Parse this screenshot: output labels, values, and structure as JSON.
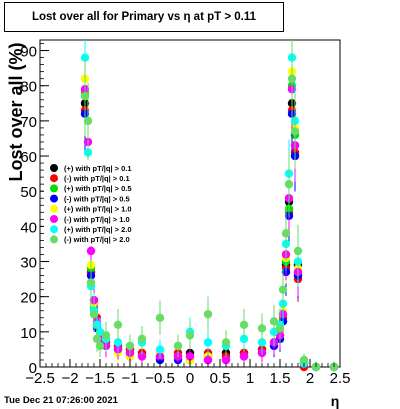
{
  "title": "Lost over all for Primary vs  η at pT > 0.11",
  "timestamp": "Tue Dec 21 07:26:00 2021",
  "chart_data": {
    "type": "scatter",
    "xlabel": "η",
    "ylabel": "Lost over all (%)",
    "xlim": [
      -2.5,
      2.5
    ],
    "ylim": [
      0,
      93
    ],
    "x_ticks": [
      "−2.5",
      "−2",
      "−1.5",
      "−1",
      "−0.5",
      "0",
      "0.5",
      "1",
      "1.5",
      "2",
      "2.5"
    ],
    "y_ticks": [
      "0",
      "10",
      "20",
      "30",
      "40",
      "50",
      "60",
      "70",
      "80",
      "90"
    ],
    "grid": false,
    "legend_position": "left-middle",
    "series": [
      {
        "name": "(+) with pT/|q| > 0.1",
        "color": "#000000",
        "x": [
          -1.75,
          -1.7,
          -1.65,
          -1.6,
          -1.55,
          -1.5,
          -1.4,
          -1.2,
          -1.0,
          -0.8,
          -0.5,
          -0.2,
          0.0,
          0.3,
          0.6,
          0.9,
          1.2,
          1.4,
          1.5,
          1.55,
          1.6,
          1.65,
          1.7,
          1.75,
          1.8,
          1.9,
          2.1,
          2.4
        ],
        "y": [
          75,
          47,
          27,
          18,
          12,
          9,
          7,
          6,
          5,
          4,
          4,
          3,
          4,
          3,
          4,
          4,
          5,
          7,
          9,
          13,
          29,
          47,
          75,
          63,
          29,
          1,
          0,
          0
        ]
      },
      {
        "name": "(-) with pT/|q| > 0.1",
        "color": "#ff0000",
        "x": [
          -1.75,
          -1.7,
          -1.65,
          -1.6,
          -1.55,
          -1.5,
          -1.4,
          -1.2,
          -1.0,
          -0.8,
          -0.5,
          -0.2,
          0.0,
          0.3,
          0.6,
          0.9,
          1.2,
          1.4,
          1.5,
          1.55,
          1.6,
          1.65,
          1.7,
          1.75,
          1.8,
          1.9,
          2.1,
          2.4
        ],
        "y": [
          73,
          46,
          27,
          19,
          14,
          9,
          7,
          6,
          5,
          4,
          3,
          4,
          3,
          4,
          3,
          4,
          5,
          7,
          8,
          14,
          28,
          44,
          73,
          61,
          25,
          0,
          0,
          0
        ]
      },
      {
        "name": "(+) with pT/|q| > 0.5",
        "color": "#00dd00",
        "x": [
          -1.75,
          -1.7,
          -1.65,
          -1.6,
          -1.55,
          -1.5,
          -1.4,
          -1.2,
          -1.0,
          -0.8,
          -0.5,
          -0.2,
          0.0,
          0.3,
          0.6,
          0.9,
          1.2,
          1.4,
          1.5,
          1.55,
          1.6,
          1.65,
          1.7,
          1.75,
          1.8,
          1.9,
          2.1,
          2.4
        ],
        "y": [
          78,
          48,
          28,
          17,
          12,
          8,
          6,
          5,
          4,
          3,
          3,
          3,
          2,
          3,
          2,
          3,
          4,
          6,
          9,
          15,
          30,
          45,
          80,
          66,
          27,
          1,
          0,
          0
        ]
      },
      {
        "name": "(-) with pT/|q| > 0.5",
        "color": "#0000ff",
        "x": [
          -1.75,
          -1.7,
          -1.65,
          -1.6,
          -1.55,
          -1.5,
          -1.4,
          -1.2,
          -1.0,
          -0.8,
          -0.5,
          -0.2,
          0.0,
          0.3,
          0.6,
          0.9,
          1.2,
          1.4,
          1.5,
          1.55,
          1.6,
          1.65,
          1.7,
          1.75,
          1.8,
          1.9,
          2.1,
          2.4
        ],
        "y": [
          72,
          45,
          26,
          16,
          11,
          8,
          6,
          5,
          3,
          3,
          2,
          2,
          2,
          2,
          2,
          3,
          4,
          6,
          8,
          13,
          27,
          43,
          72,
          60,
          26,
          1,
          0,
          0
        ]
      },
      {
        "name": "(+) with pT/|q| > 1.0",
        "color": "#ffff00",
        "x": [
          -1.75,
          -1.7,
          -1.65,
          -1.6,
          -1.55,
          -1.5,
          -1.4,
          -1.2,
          -1.0,
          -0.8,
          -0.5,
          -0.2,
          0.0,
          0.3,
          0.6,
          0.9,
          1.2,
          1.4,
          1.5,
          1.55,
          1.6,
          1.65,
          1.7,
          1.75,
          1.8,
          1.9,
          2.1,
          2.4
        ],
        "y": [
          82,
          50,
          29,
          18,
          12,
          9,
          6,
          4,
          3,
          3,
          4,
          3,
          2,
          3,
          2,
          3,
          4,
          7,
          10,
          16,
          31,
          48,
          84,
          68,
          28,
          1,
          0,
          0
        ]
      },
      {
        "name": "(-) with pT/|q| > 1.0",
        "color": "#ff00ff",
        "x": [
          -1.75,
          -1.7,
          -1.65,
          -1.6,
          -1.55,
          -1.5,
          -1.4,
          -1.2,
          -1.0,
          -0.8,
          -0.5,
          -0.2,
          0.0,
          0.3,
          0.6,
          0.9,
          1.2,
          1.4,
          1.5,
          1.55,
          1.6,
          1.65,
          1.7,
          1.75,
          1.8,
          1.9,
          2.1,
          2.4
        ],
        "y": [
          79,
          64,
          33,
          19,
          13,
          8,
          6,
          5,
          4,
          3,
          3,
          3,
          3,
          2,
          2,
          3,
          4,
          7,
          9,
          15,
          32,
          48,
          79,
          63,
          27,
          1,
          0,
          0
        ]
      },
      {
        "name": "(+) with pT/|q| > 2.0",
        "color": "#00ffff",
        "x": [
          -1.75,
          -1.7,
          -1.65,
          -1.6,
          -1.55,
          -1.5,
          -1.4,
          -1.2,
          -1.0,
          -0.8,
          -0.5,
          -0.2,
          0.0,
          0.3,
          0.6,
          0.9,
          1.2,
          1.4,
          1.5,
          1.55,
          1.6,
          1.65,
          1.7,
          1.75,
          1.8,
          1.9,
          2.1,
          2.4
        ],
        "y": [
          88,
          61,
          23,
          16,
          12,
          10,
          8,
          7,
          6,
          7,
          5,
          6,
          10,
          7,
          6,
          8,
          7,
          10,
          12,
          18,
          35,
          55,
          88,
          70,
          30,
          1,
          0,
          0
        ]
      },
      {
        "name": "(-) with pT/|q| > 2.0",
        "color": "#66dd66",
        "x": [
          -1.75,
          -1.7,
          -1.65,
          -1.6,
          -1.55,
          -1.5,
          -1.4,
          -1.2,
          -1.0,
          -0.8,
          -0.5,
          -0.2,
          0.0,
          0.3,
          0.6,
          0.9,
          1.2,
          1.4,
          1.5,
          1.55,
          1.6,
          1.65,
          1.7,
          1.75,
          1.8,
          1.9,
          2.1,
          2.4
        ],
        "y": [
          77,
          70,
          24,
          15,
          8,
          6,
          9,
          12,
          6,
          8,
          14,
          6,
          9,
          15,
          7,
          12,
          11,
          13,
          11,
          22,
          38,
          52,
          82,
          67,
          33,
          2,
          0,
          0
        ]
      }
    ]
  }
}
